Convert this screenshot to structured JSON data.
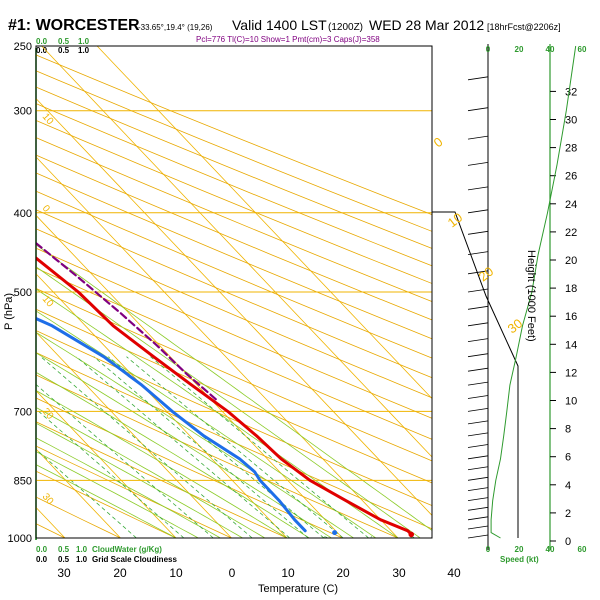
{
  "header": {
    "station": "#1: WORCESTER",
    "coords": "-33.65°,19.4° (19,26)",
    "valid": "Valid 1400 LST",
    "utc": "(1200Z)",
    "date": "WED 28 Mar 2012",
    "forecast": "[18hrFcst@2206z]",
    "indices": "Pcl=776 Tl(C)=10 Show=1 Pmt(cm)=3 Caps(J)=358"
  },
  "colors": {
    "isobar": "#f0b400",
    "isotherm": "#f0b400",
    "dry_adiabat": "#e8a800",
    "moist_adiabat": "#8ccc2a",
    "mixing_ratio": "#3aaa3a",
    "temperature": "#e00000",
    "dewpoint": "#1e6ee8",
    "parcel": "#800080",
    "cloud_bar": "#008000",
    "height_axis": "#2e9a2e"
  },
  "labels": {
    "cloud_water": "CloudWater (g/Kg)",
    "grid_cloudiness": "Grid Scale Cloudiness",
    "cloud_top_ticks": [
      "0.0",
      "0.5",
      "1.0"
    ],
    "cloud_bottom_ticks": [
      "0.0",
      "0.5",
      "1.0"
    ],
    "speed_label": "Speed (kt)",
    "speed_ticks": [
      "0",
      "20",
      "40",
      "60"
    ],
    "height_label": "Height (1000 Feet)"
  },
  "chart_data": {
    "type": "skew-t",
    "xlabel": "Temperature (C)",
    "ylabel": "P (hPa)",
    "pressure_ticks": [
      250,
      300,
      400,
      500,
      700,
      850,
      1000
    ],
    "temperature_ticks": [
      30,
      20,
      10,
      0,
      10,
      20,
      30,
      40
    ],
    "temperature_tick_values": [
      -30,
      -20,
      -10,
      0,
      10,
      20,
      30,
      40
    ],
    "isotherm_labels": [
      {
        "value": "0",
        "at_p": 320
      },
      {
        "value": "10",
        "at_p": 400
      },
      {
        "value": "20",
        "at_p": 455
      },
      {
        "value": "30",
        "at_p": 540
      }
    ],
    "left_temp_labels": [
      {
        "value": "10",
        "at_p": 305
      },
      {
        "value": "0",
        "at_p": 395
      },
      {
        "value": "10",
        "at_p": 510
      },
      {
        "value": "20",
        "at_p": 700
      },
      {
        "value": "30",
        "at_p": 890
      }
    ],
    "mixing_ratio_labels": [
      "1",
      "2",
      "5",
      "8",
      "10",
      "15",
      "20"
    ],
    "temperature": {
      "name": "Temperature",
      "points": [
        [
          250,
          -1.5
        ],
        [
          300,
          1.5
        ],
        [
          350,
          5.5
        ],
        [
          400,
          9.5
        ],
        [
          450,
          12.5
        ],
        [
          500,
          14.5
        ],
        [
          550,
          15
        ],
        [
          600,
          17
        ],
        [
          650,
          19
        ],
        [
          700,
          21
        ],
        [
          750,
          22
        ],
        [
          800,
          22.5
        ],
        [
          850,
          24
        ],
        [
          900,
          27
        ],
        [
          950,
          30
        ],
        [
          980,
          33
        ],
        [
          990,
          33
        ]
      ]
    },
    "dewpoint": {
      "name": "Dewpoint",
      "points": [
        [
          250,
          -7
        ],
        [
          280,
          -7
        ],
        [
          300,
          -4
        ],
        [
          330,
          0
        ],
        [
          360,
          1
        ],
        [
          400,
          -3
        ],
        [
          430,
          -10
        ],
        [
          460,
          -19
        ],
        [
          500,
          -9
        ],
        [
          530,
          1
        ],
        [
          550,
          4
        ],
        [
          600,
          8
        ],
        [
          650,
          10
        ],
        [
          700,
          11
        ],
        [
          750,
          12.5
        ],
        [
          800,
          15
        ],
        [
          830,
          15.5
        ],
        [
          850,
          15
        ],
        [
          900,
          15
        ],
        [
          950,
          14.5
        ],
        [
          980,
          14.5
        ]
      ]
    },
    "parcel": {
      "name": "Parcel",
      "points": [
        [
          285,
          2
        ],
        [
          330,
          6.5
        ],
        [
          380,
          11.5
        ],
        [
          430,
          15
        ],
        [
          480,
          17
        ],
        [
          530,
          18.5
        ],
        [
          580,
          19.5
        ],
        [
          630,
          20
        ],
        [
          680,
          21
        ]
      ]
    },
    "surface_dewpoint_dot": {
      "p": 985,
      "t": 19.5
    },
    "surface_temp_dot": {
      "p": 990,
      "t": 33
    },
    "height_ticks_kft": [
      0,
      2,
      4,
      6,
      8,
      10,
      12,
      14,
      16,
      18,
      20,
      22,
      24,
      26,
      28,
      30,
      32
    ],
    "wind_speed_profile_kt": [
      [
        1000,
        8
      ],
      [
        985,
        2
      ],
      [
        950,
        2
      ],
      [
        900,
        3
      ],
      [
        850,
        5
      ],
      [
        800,
        8
      ],
      [
        750,
        10
      ],
      [
        700,
        12
      ],
      [
        650,
        14
      ],
      [
        600,
        18
      ],
      [
        550,
        22
      ],
      [
        500,
        28
      ],
      [
        450,
        32
      ],
      [
        400,
        38
      ],
      [
        350,
        44
      ],
      [
        300,
        50
      ],
      [
        250,
        56
      ]
    ]
  }
}
